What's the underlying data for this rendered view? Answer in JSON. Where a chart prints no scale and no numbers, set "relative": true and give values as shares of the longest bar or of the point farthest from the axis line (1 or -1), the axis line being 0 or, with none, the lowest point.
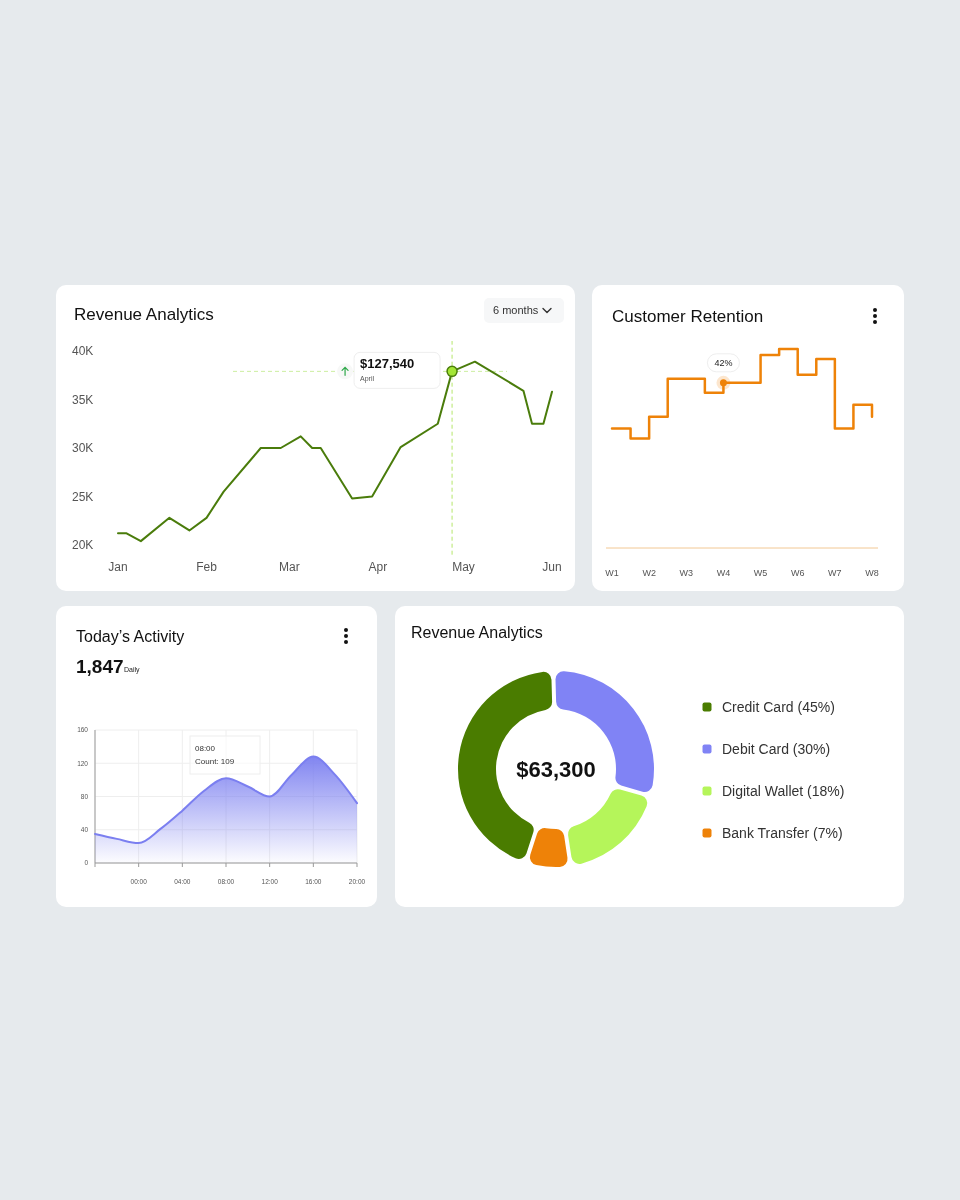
{
  "chart_data": [
    {
      "type": "line",
      "title": "Revenue Analytics",
      "x": [
        "--01-01",
        "--01-04",
        "--01-09",
        "--01-19",
        "--01-26",
        "--02-01",
        "--02-07",
        "--02-20",
        "--02-27",
        "--03-05",
        "--03-09",
        "--03-12",
        "--03-23",
        "--03-30",
        "--04-09",
        "--04-22",
        "--04-27",
        "--05-05",
        "--05-22",
        "--05-25",
        "--05-29",
        "--06-01"
      ],
      "series": [
        {
          "color": "#4a7c0b",
          "values": [
            21200,
            21200,
            20400,
            22800,
            21500,
            22800,
            25500,
            30000,
            30000,
            31200,
            30000,
            30000,
            24800,
            25000,
            30100,
            32500,
            37900,
            38900,
            35900,
            32500,
            32500,
            35800
          ]
        }
      ],
      "xlim": [
        "--01-01",
        "--06-01"
      ],
      "xticks": [
        {
          "value": "--01-01",
          "label": "Jan"
        },
        {
          "value": "--02-01",
          "label": "Feb"
        },
        {
          "value": "--03-01",
          "label": "Mar"
        },
        {
          "value": "--04-01",
          "label": "Apr"
        },
        {
          "value": "--05-01",
          "label": "May"
        },
        {
          "value": "--06-01",
          "label": "Jun"
        }
      ],
      "ylim": [
        19000,
        40000
      ],
      "yticks": [
        {
          "value": 20000,
          "label": "20K"
        },
        {
          "value": 25000,
          "label": "25K"
        },
        {
          "value": 30000,
          "label": "30K"
        },
        {
          "value": 35000,
          "label": "35K"
        },
        {
          "value": 40000,
          "label": "40K"
        }
      ],
      "ref_lines": [
        {
          "axis": "x",
          "value": "--04-27",
          "color": "#b5e66a",
          "line_style": "dashed"
        },
        {
          "axis": "y",
          "value": 37900,
          "color": "#cdeea0",
          "line_style": "dashed"
        }
      ],
      "annotations": [
        "6 months",
        {
          "text": "$127,540",
          "x": "--04-27",
          "y": 37900
        },
        "April"
      ]
    },
    {
      "type": "step",
      "title": "Customer Retention",
      "relative": true,
      "categories": [
        "W1",
        null,
        "W2",
        null,
        "W3",
        null,
        "W4",
        null,
        "W5",
        null,
        "W6",
        null,
        "W7",
        null,
        "W8"
      ],
      "series": [
        {
          "color": "#ee8208",
          "values": [
            0.6,
            0.55,
            0.66,
            0.85,
            0.85,
            0.78,
            0.83,
            0.83,
            0.97,
            1,
            0.87,
            0.95,
            0.6,
            0.72,
            0.66
          ]
        }
      ],
      "annotations": [
        "42%"
      ]
    },
    {
      "type": "area",
      "title": "Today’s Activity",
      "subtitle": "1,847",
      "x": [
        -4,
        -2,
        0,
        2,
        4,
        6,
        8,
        10,
        12,
        14,
        16,
        18,
        20
      ],
      "series": [
        {
          "color": "#7b7ff0",
          "values": [
            35,
            29,
            24,
            41,
            63,
            87,
            102,
            92,
            80,
            106,
            128,
            106,
            72
          ]
        }
      ],
      "xlim": [
        -4,
        20
      ],
      "xticks": [
        {
          "value": -4,
          "label": null
        },
        {
          "value": 0,
          "label": "00:00"
        },
        {
          "value": 4,
          "label": "04:00"
        },
        {
          "value": 8,
          "label": "08:00"
        },
        {
          "value": 12,
          "label": "12:00"
        },
        {
          "value": 16,
          "label": "16:00"
        },
        {
          "value": 20,
          "label": "20:00"
        }
      ],
      "ylim": [
        0,
        160
      ],
      "yticks": [
        0,
        40,
        80,
        120,
        160
      ],
      "grid": true,
      "annotations": [
        "Daily",
        "08:00",
        "Count: 109"
      ]
    },
    {
      "type": "donut",
      "title": "Revenue Analytics",
      "categories": [
        "Credit Card (45%)",
        "Debit Card (30%)",
        "Digital Wallet (18%)",
        "Bank Transfer (7%)"
      ],
      "values": [
        45,
        30,
        18,
        7
      ],
      "colors": [
        "#4a7c00",
        "#8083f5",
        "#b5f55a",
        "#ee8208"
      ],
      "legend": "right",
      "annotations": [
        "$63,300"
      ]
    }
  ]
}
